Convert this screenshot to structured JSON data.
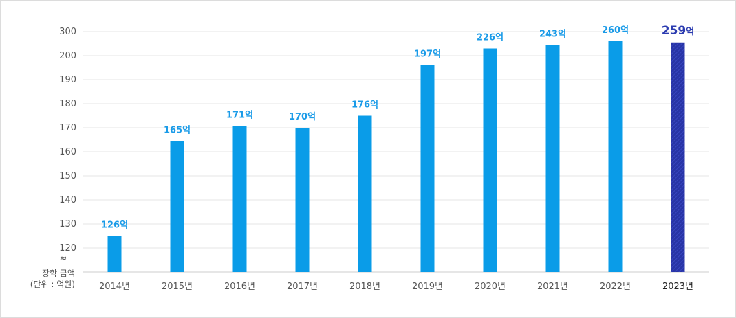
{
  "chart_data": {
    "type": "bar",
    "categories": [
      "2014년",
      "2015년",
      "2016년",
      "2017년",
      "2018년",
      "2019년",
      "2020년",
      "2021년",
      "2022년",
      "2023년"
    ],
    "values": [
      126,
      165,
      171,
      170,
      176,
      197,
      226,
      243,
      260,
      259
    ],
    "bar_heights_on_axis": [
      125,
      164.5,
      170.7,
      170,
      175,
      196.2,
      203,
      204.5,
      206,
      205.5
    ],
    "data_labels": [
      "126억",
      "165억",
      "171억",
      "170억",
      "176억",
      "197억",
      "226억",
      "243억",
      "260억",
      "259"
    ],
    "highlight_unit": "억",
    "highlight_index": 9,
    "yticks": [
      "120",
      "130",
      "140",
      "150",
      "160",
      "170",
      "180",
      "190",
      "200",
      "300"
    ],
    "ylabel_line1": "장학 금액",
    "ylabel_line2": "(단위 : 억원)",
    "axis_break_mark": "≈",
    "grid": true,
    "bar_color": "#0a9ce8",
    "highlight_color": "#2834a6"
  }
}
